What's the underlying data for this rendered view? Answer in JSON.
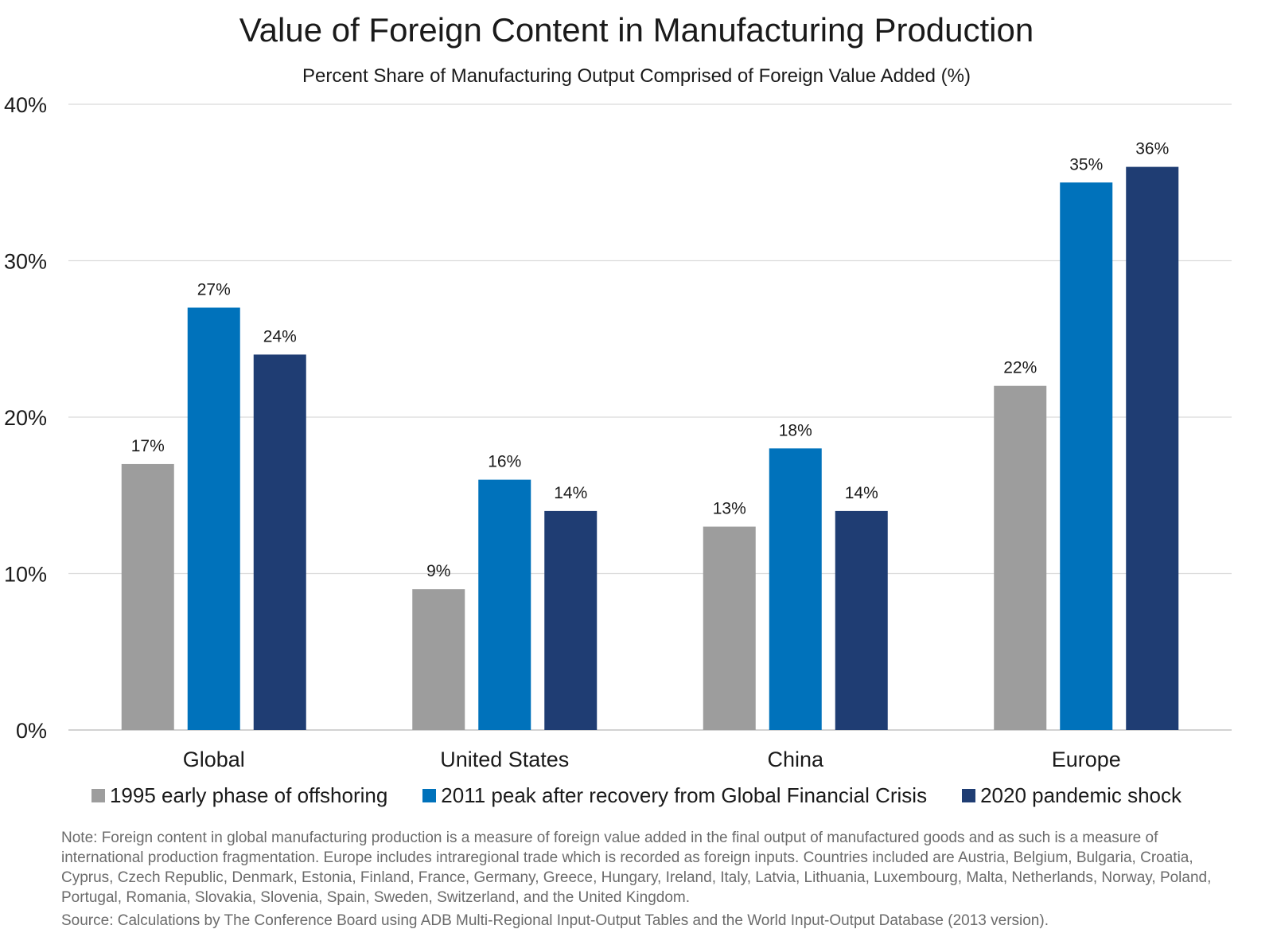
{
  "chart_data": {
    "type": "bar",
    "title": "Value of Foreign Content in Manufacturing Production",
    "subtitle": "Percent Share of Manufacturing Output Comprised of Foreign Value Added (%)",
    "categories": [
      "Global",
      "United States",
      "China",
      "Europe"
    ],
    "series": [
      {
        "name": "1995 early phase of offshoring",
        "color": "#9d9d9d",
        "values": [
          17,
          9,
          13,
          22
        ]
      },
      {
        "name": "2011 peak after recovery from Global Financial Crisis",
        "color": "#0072bb",
        "values": [
          27,
          16,
          18,
          35
        ]
      },
      {
        "name": "2020 pandemic shock",
        "color": "#1f3d73",
        "values": [
          24,
          14,
          14,
          36
        ]
      }
    ],
    "yticks": [
      "0%",
      "10%",
      "20%",
      "30%",
      "40%"
    ],
    "ylim": [
      0,
      40
    ],
    "xlabel": "",
    "ylabel": "",
    "value_suffix": "%",
    "legend_position": "bottom",
    "grid": true
  },
  "note": "Note: Foreign content in global manufacturing production is a measure of foreign value added in the final output of manufactured goods and as such is a measure of international production fragmentation. Europe includes intraregional trade which is recorded as foreign inputs. Countries included are Austria, Belgium, Bulgaria, Croatia, Cyprus, Czech Republic, Denmark, Estonia, Finland, France, Germany, Greece, Hungary, Ireland, Italy, Latvia, Lithuania, Luxembourg, Malta, Netherlands, Norway, Poland, Portugal, Romania, Slovakia, Slovenia, Spain, Sweden, Switzerland, and the United Kingdom.",
  "source": "Source: Calculations by The Conference Board using ADB Multi-Regional Input-Output Tables and the World Input-Output Database (2013 version)."
}
